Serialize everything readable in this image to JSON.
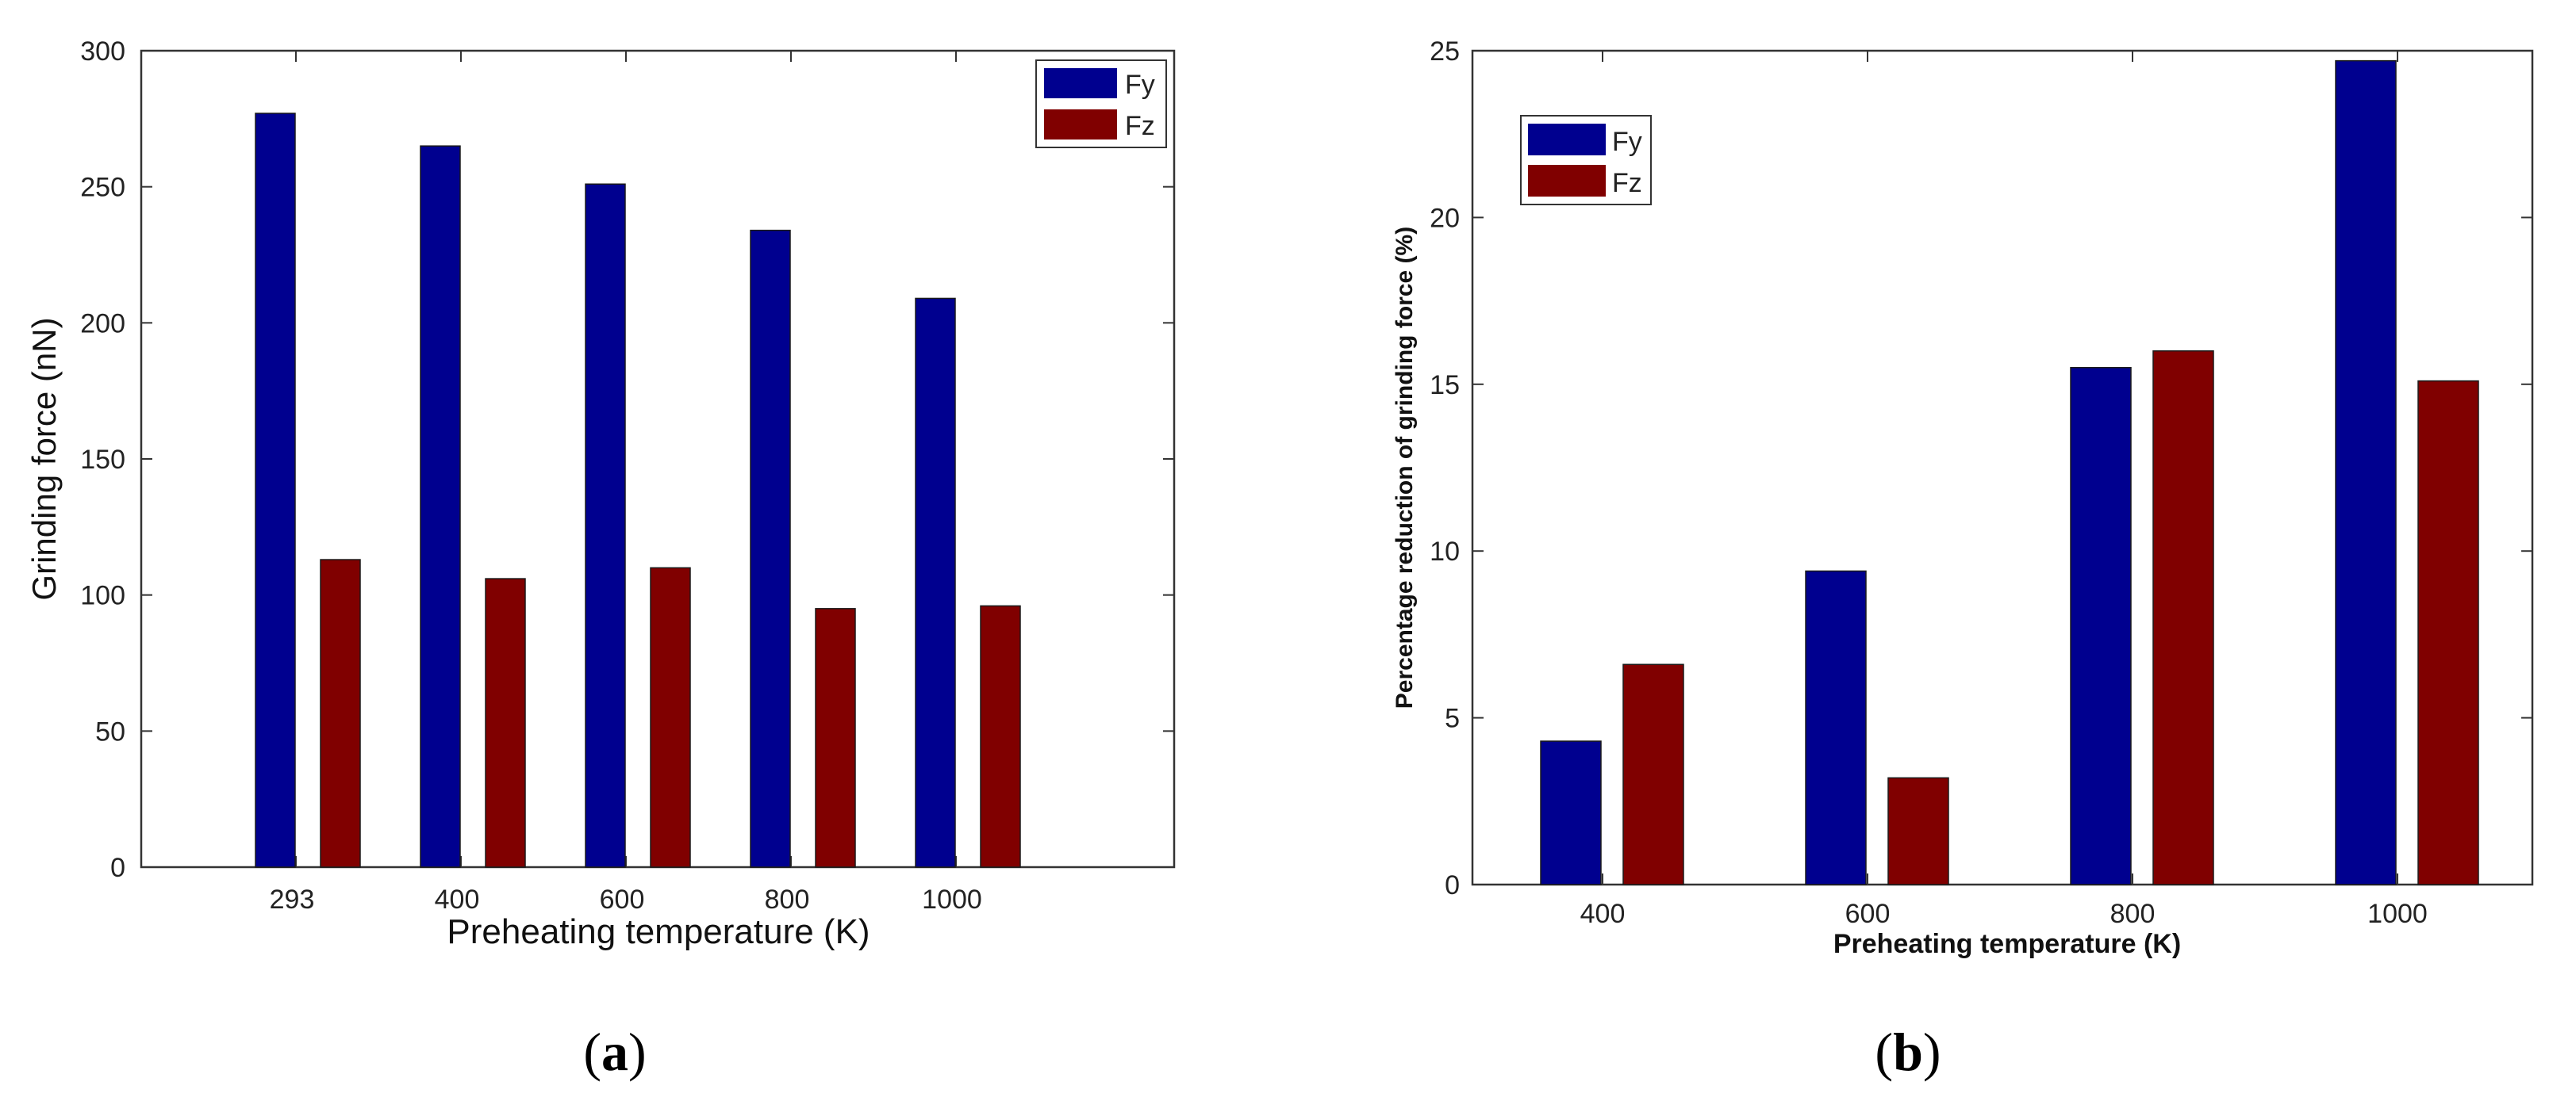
{
  "colors": {
    "fy": "#00008f",
    "fz": "#800000",
    "axis": "#333333"
  },
  "chart_data": [
    {
      "id": "a",
      "type": "bar",
      "caption_open": "(",
      "caption_letter": "a",
      "caption_close": ")",
      "title": "",
      "xlabel": "Preheating temperature (K)",
      "ylabel": "Grinding force (nN)",
      "categories": [
        "293",
        "400",
        "600",
        "800",
        "1000"
      ],
      "series": [
        {
          "name": "Fy",
          "values": [
            277,
            265,
            251,
            234,
            209
          ]
        },
        {
          "name": "Fz",
          "values": [
            113,
            106,
            110,
            95,
            96
          ]
        }
      ],
      "ylim": [
        0,
        300
      ],
      "yticks": [
        0,
        50,
        100,
        150,
        200,
        250,
        300
      ],
      "legend": "top-right"
    },
    {
      "id": "b",
      "type": "bar",
      "caption_open": "(",
      "caption_letter": "b",
      "caption_close": ")",
      "title": "",
      "xlabel": "Preheating temperature (K)",
      "ylabel": "Percentage reduction of grinding force (%)",
      "categories": [
        "400",
        "600",
        "800",
        "1000"
      ],
      "series": [
        {
          "name": "Fy",
          "values": [
            4.3,
            9.4,
            15.5,
            24.7
          ]
        },
        {
          "name": "Fz",
          "values": [
            6.6,
            3.2,
            16.0,
            15.1
          ]
        }
      ],
      "ylim": [
        0,
        25
      ],
      "yticks": [
        0,
        5,
        10,
        15,
        20,
        25
      ],
      "legend": "top-left"
    }
  ]
}
